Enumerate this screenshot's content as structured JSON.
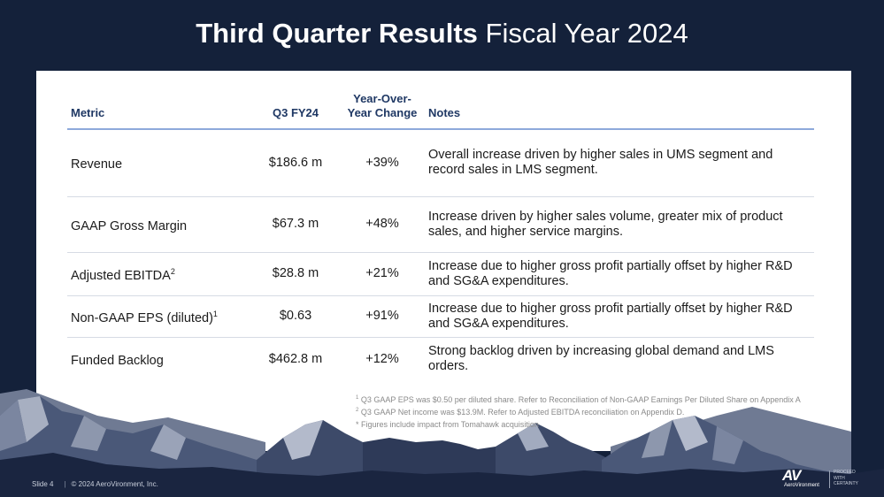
{
  "slide_title": {
    "bold": "Third Quarter Results",
    "normal": " Fiscal Year 2024"
  },
  "table": {
    "headers": {
      "metric": "Metric",
      "q3": "Q3 FY24",
      "yoy_line1": "Year-Over-",
      "yoy_line2": "Year Change",
      "notes": "Notes"
    },
    "rows": [
      {
        "metric": "Revenue",
        "sup": "",
        "value": "$186.6 m",
        "change": "+39%",
        "notes_line1": "Overall increase driven by higher sales in UMS segment and",
        "notes_line2": "record sales in LMS segment."
      },
      {
        "metric": "GAAP Gross Margin",
        "sup": "",
        "value": "$67.3 m",
        "change": "+48%",
        "notes_line1": "Increase driven by higher sales volume, greater mix of product",
        "notes_line2": "sales, and higher service margins."
      },
      {
        "metric": "Adjusted EBITDA",
        "sup": "2",
        "value": "$28.8 m",
        "change": "+21%",
        "notes_line1": "Increase due to higher gross profit partially offset by higher R&D",
        "notes_line2": "and SG&A expenditures."
      },
      {
        "metric": "Non-GAAP EPS (diluted)",
        "sup": "1",
        "value": "$0.63",
        "change": "+91%",
        "notes_line1": "Increase due to higher gross profit partially offset by higher R&D",
        "notes_line2": "and SG&A expenditures."
      },
      {
        "metric": "Funded Backlog",
        "sup": "",
        "value": "$462.8 m",
        "change": "+12%",
        "notes_line1": "Strong backlog driven by increasing global demand and LMS",
        "notes_line2": "orders."
      }
    ]
  },
  "footnotes": [
    {
      "sup": "1",
      "text": " Q3 GAAP EPS was $0.50 per diluted share. Refer to Reconciliation of Non-GAAP Earnings Per Diluted Share on Appendix A"
    },
    {
      "sup": "2",
      "text": " Q3 GAAP Net income was $13.9M. Refer to Adjusted EBITDA reconciliation on Appendix D."
    },
    {
      "sup": "",
      "text": "* Figures include impact from Tomahawk acquisition"
    }
  ],
  "footer": {
    "slide": "Slide 4",
    "copyright": "© 2024 AeroVironment, Inc."
  },
  "logo": {
    "mark": "AV",
    "wordmark": "AeroVironment",
    "tagline_1": "PROCEED",
    "tagline_2": "WITH",
    "tagline_3": "CERTAINTY"
  },
  "colors": {
    "background": "#14213a",
    "header_text": "#1f3864",
    "header_rule": "#8ea9db",
    "mountain_light": "#8d97ad",
    "mountain_dark": "#26324f"
  }
}
